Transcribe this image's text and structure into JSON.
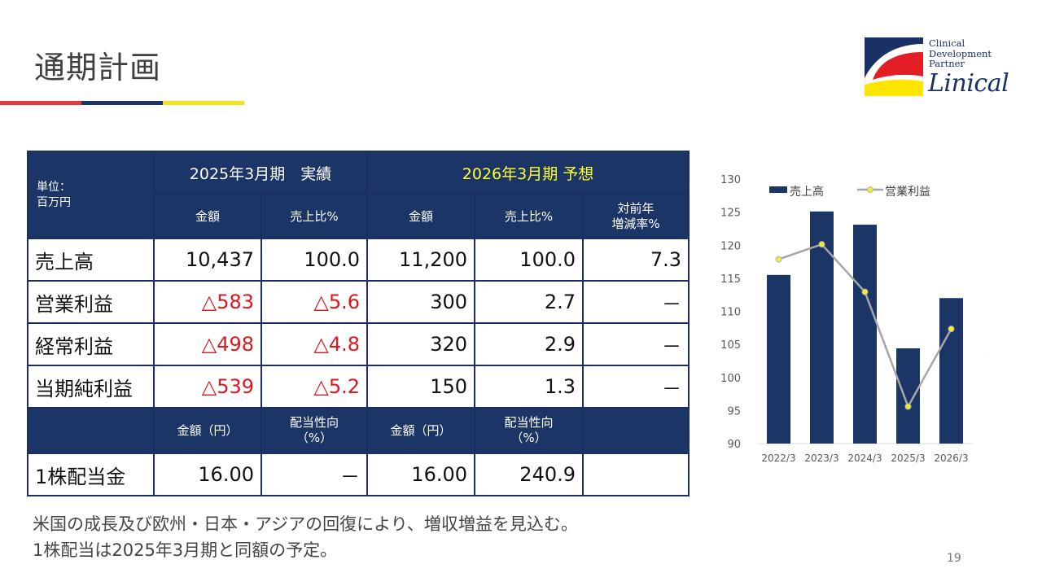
{
  "slide": {
    "title": "通期計画",
    "page_number": "19",
    "rule_colors": [
      "#e33b3b",
      "#1b3567",
      "#f2e21b"
    ]
  },
  "logo": {
    "line1": "Clinical",
    "line2": "Development",
    "line3": "Partner",
    "wordmark": "Linical",
    "colors": {
      "red": "#e31e24",
      "navy": "#1b3166",
      "yellow": "#ffe600"
    }
  },
  "table": {
    "unit_line1": "単位：",
    "unit_line2": "百万円",
    "actual_header": "2025年3月期　実績",
    "forecast_header": "2026年3月期 予想",
    "sub_amount": "金額",
    "sub_ratio": "売上比%",
    "sub_yoy_line1": "対前年",
    "sub_yoy_line2": "増減率%",
    "rows": [
      {
        "label": "売上高",
        "act_amount": "10,437",
        "act_ratio": "100.0",
        "fc_amount": "11,200",
        "fc_ratio": "100.0",
        "yoy": "7.3"
      },
      {
        "label": "営業利益",
        "act_amount": "△583",
        "act_ratio": "△5.6",
        "fc_amount": "300",
        "fc_ratio": "2.7",
        "yoy": "－"
      },
      {
        "label": "経常利益",
        "act_amount": "△498",
        "act_ratio": "△4.8",
        "fc_amount": "320",
        "fc_ratio": "2.9",
        "yoy": "－"
      },
      {
        "label": "当期純利益",
        "act_amount": "△539",
        "act_ratio": "△5.2",
        "fc_amount": "150",
        "fc_ratio": "1.3",
        "yoy": "－"
      }
    ],
    "dividend_header_amount": "金額（円）",
    "dividend_header_payout_line1": "配当性向",
    "dividend_header_payout_line2": "（%）",
    "dividend_row": {
      "label": "1株配当金",
      "act_amount": "16.00",
      "act_payout": "－",
      "fc_amount": "16.00",
      "fc_payout": "240.9"
    },
    "negative_color": "#e0161e",
    "header_bg": "#1b3567",
    "forecast_header_color": "#ffff2e"
  },
  "note": {
    "line1": "米国の成長及び欧州・日本・アジアの回復により、増収増益を見込む。",
    "line2": "1株配当は2025年3月期と同額の予定。"
  },
  "chart_data": {
    "type": "bar",
    "categories": [
      "2022/3",
      "2023/3",
      "2024/3",
      "2025/3",
      "2026/3"
    ],
    "series": [
      {
        "name": "売上高",
        "type": "bar",
        "axis": "left",
        "color": "#1b3567",
        "values": [
          115.5,
          125.1,
          123.1,
          104.4,
          112.0
        ]
      },
      {
        "name": "営業利益",
        "type": "line",
        "axis": "right",
        "color": "#a6a6a6",
        "marker_color": "#f0ec2e",
        "values": [
          10.9,
          12.6,
          7.2,
          -5.8,
          3.0
        ]
      }
    ],
    "left_axis": {
      "ylim": [
        90,
        130
      ],
      "ticks": [
        "130",
        "125",
        "120",
        "115",
        "110",
        "105",
        "100",
        "95",
        "90"
      ]
    },
    "right_axis": {
      "ylim": [
        -10,
        20
      ],
      "ticks": [
        "20",
        "15",
        "10",
        "5",
        "0",
        "(5)",
        "(10)"
      ],
      "negative_color": "#d0211f"
    },
    "legend_position": "top",
    "grid": false
  }
}
